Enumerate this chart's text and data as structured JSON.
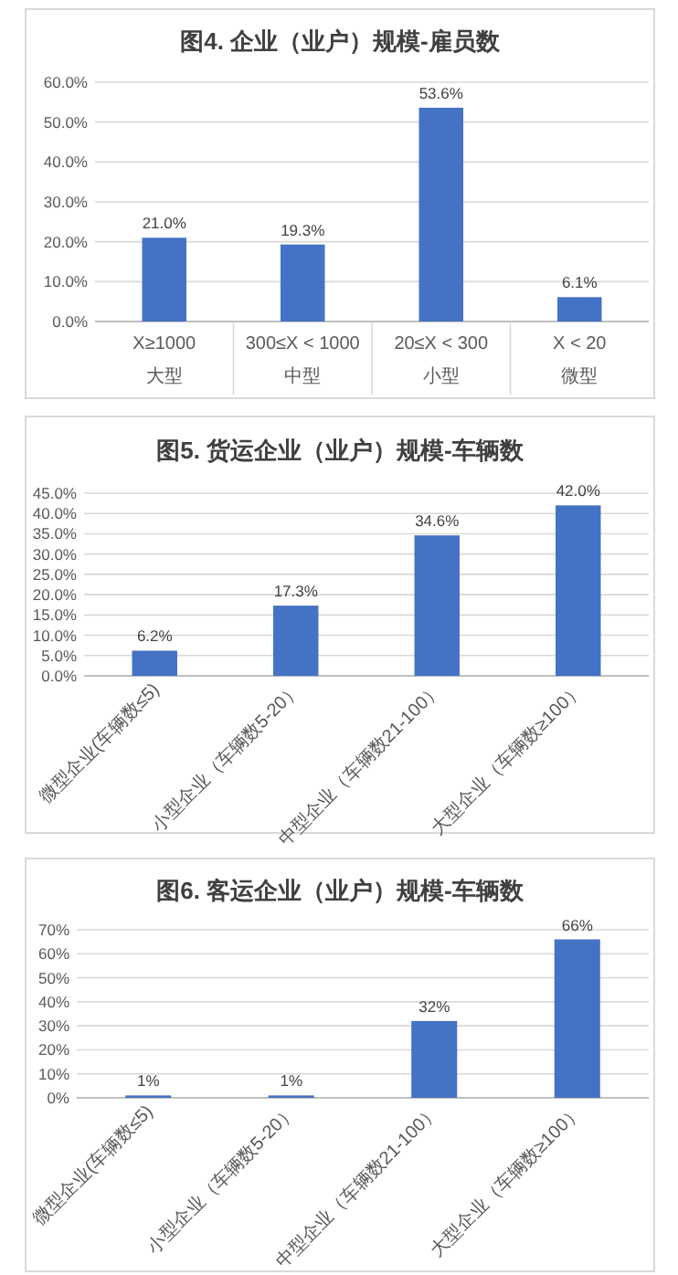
{
  "chart_data": [
    {
      "type": "bar",
      "title": "图4. 企业（业户）规模-雇员数",
      "categories": [
        "X≥1000\n大型",
        "300≤X < 1000\n中型",
        "20≤X < 300\n小型",
        "X < 20\n微型"
      ],
      "values": [
        21.0,
        19.3,
        53.6,
        6.1
      ],
      "value_labels": [
        "21.0%",
        "19.3%",
        "53.6%",
        "6.1%"
      ],
      "color": "#4472c4",
      "ylim": [
        0,
        60
      ],
      "yticks": [
        {
          "value": 0,
          "label": "0.0%"
        },
        {
          "value": 10,
          "label": "10.0%"
        },
        {
          "value": 20,
          "label": "20.0%"
        },
        {
          "value": 30,
          "label": "30.0%"
        },
        {
          "value": 40,
          "label": "40.0%"
        },
        {
          "value": 50,
          "label": "50.0%"
        },
        {
          "value": 60,
          "label": "60.0%"
        }
      ],
      "grid": "y"
    },
    {
      "type": "bar",
      "title": "图5. 货运企业（业户）规模-车辆数",
      "categories": [
        "微型企业(车辆数≤5)",
        "小型企业（车辆数5-20）",
        "中型企业（车辆数21-100）",
        "大型企业（车辆数≥100）"
      ],
      "values": [
        6.2,
        17.3,
        34.6,
        42.0
      ],
      "value_labels": [
        "6.2%",
        "17.3%",
        "34.6%",
        "42.0%"
      ],
      "color": "#4472c4",
      "ylim": [
        0,
        45
      ],
      "yticks": [
        {
          "value": 0,
          "label": "0.0%"
        },
        {
          "value": 5,
          "label": "5.0%"
        },
        {
          "value": 10,
          "label": "10.0%"
        },
        {
          "value": 15,
          "label": "15.0%"
        },
        {
          "value": 20,
          "label": "20.0%"
        },
        {
          "value": 25,
          "label": "25.0%"
        },
        {
          "value": 30,
          "label": "30.0%"
        },
        {
          "value": 35,
          "label": "35.0%"
        },
        {
          "value": 40,
          "label": "40.0%"
        },
        {
          "value": 45,
          "label": "45.0%"
        }
      ],
      "grid": "y"
    },
    {
      "type": "bar",
      "title": "图6. 客运企业（业户）规模-车辆数",
      "categories": [
        "微型企业(车辆数≤5)",
        "小型企业（车辆数5-20）",
        "中型企业（车辆数21-100）",
        "大型企业（车辆数≥100）"
      ],
      "values": [
        1,
        1,
        32,
        66
      ],
      "value_labels": [
        "1%",
        "1%",
        "32%",
        "66%"
      ],
      "color": "#4472c4",
      "ylim": [
        0,
        70
      ],
      "yticks": [
        {
          "value": 0,
          "label": "0%"
        },
        {
          "value": 10,
          "label": "10%"
        },
        {
          "value": 20,
          "label": "20%"
        },
        {
          "value": 30,
          "label": "30%"
        },
        {
          "value": 40,
          "label": "40%"
        },
        {
          "value": 50,
          "label": "50%"
        },
        {
          "value": 60,
          "label": "60%"
        },
        {
          "value": 70,
          "label": "70%"
        }
      ],
      "grid": "y"
    }
  ]
}
